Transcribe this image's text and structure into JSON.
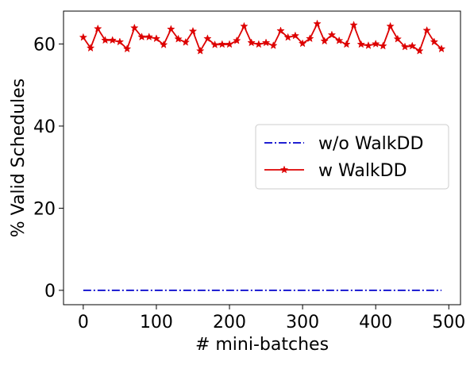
{
  "chart_data": {
    "type": "line",
    "title": "",
    "xlabel": "# mini-batches",
    "ylabel": "% Valid Schedules",
    "xlim": [
      -27,
      516
    ],
    "ylim": [
      -3.5,
      68
    ],
    "xticks": [
      0,
      100,
      200,
      300,
      400,
      500
    ],
    "xtick_labels": [
      "0",
      "100",
      "200",
      "300",
      "400",
      "500"
    ],
    "yticks": [
      0,
      20,
      40,
      60
    ],
    "ytick_labels": [
      "0",
      "20",
      "40",
      "60"
    ],
    "grid": false,
    "legend_position": "center-right",
    "x": [
      0,
      10,
      20,
      30,
      40,
      50,
      60,
      70,
      80,
      90,
      100,
      110,
      120,
      130,
      140,
      150,
      160,
      170,
      180,
      190,
      200,
      210,
      220,
      230,
      240,
      250,
      260,
      270,
      280,
      290,
      300,
      310,
      320,
      330,
      340,
      350,
      360,
      370,
      380,
      390,
      400,
      410,
      420,
      430,
      440,
      450,
      460,
      470,
      480,
      490
    ],
    "series": [
      {
        "name": "w/o WalkDD",
        "color": "#0000cc",
        "line_style": "dashdot",
        "marker": "none",
        "values": [
          0,
          0,
          0,
          0,
          0,
          0,
          0,
          0,
          0,
          0,
          0,
          0,
          0,
          0,
          0,
          0,
          0,
          0,
          0,
          0,
          0,
          0,
          0,
          0,
          0,
          0,
          0,
          0,
          0,
          0,
          0,
          0,
          0,
          0,
          0,
          0,
          0,
          0,
          0,
          0,
          0,
          0,
          0,
          0,
          0,
          0,
          0,
          0,
          0,
          0
        ]
      },
      {
        "name": "w WalkDD",
        "color": "#dd0000",
        "line_style": "solid",
        "marker": "star",
        "values": [
          61.6,
          59.0,
          63.7,
          60.9,
          60.9,
          60.5,
          58.8,
          63.9,
          61.7,
          61.7,
          61.3,
          59.8,
          63.6,
          61.2,
          60.4,
          63.1,
          58.3,
          61.3,
          59.8,
          59.9,
          59.9,
          60.8,
          64.3,
          60.3,
          59.9,
          60.3,
          59.6,
          63.2,
          61.6,
          62.0,
          60.1,
          61.3,
          64.9,
          60.7,
          62.2,
          60.8,
          59.9,
          64.6,
          59.9,
          59.6,
          60.0,
          59.5,
          64.3,
          61.2,
          59.3,
          59.5,
          58.3,
          63.3,
          60.5,
          58.8
        ]
      }
    ]
  }
}
